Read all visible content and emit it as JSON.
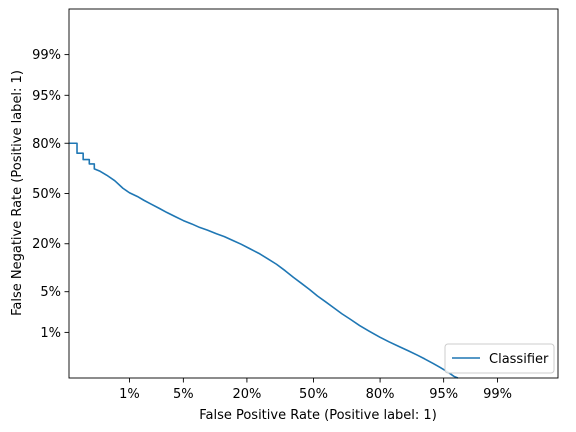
{
  "chart_data": {
    "type": "line",
    "title": "",
    "xlabel": "False Positive Rate (Positive label: 1)",
    "ylabel": "False Negative Rate (Positive label: 1)",
    "x_scale": "probit",
    "y_scale": "probit",
    "xlim": [
      0.001,
      0.999
    ],
    "ylim": [
      0.001,
      0.999
    ],
    "x_ticks": [
      {
        "value": 0.01,
        "label": "1%"
      },
      {
        "value": 0.05,
        "label": "5%"
      },
      {
        "value": 0.2,
        "label": "20%"
      },
      {
        "value": 0.5,
        "label": "50%"
      },
      {
        "value": 0.8,
        "label": "80%"
      },
      {
        "value": 0.95,
        "label": "95%"
      },
      {
        "value": 0.99,
        "label": "99%"
      }
    ],
    "y_ticks": [
      {
        "value": 0.01,
        "label": "1%"
      },
      {
        "value": 0.05,
        "label": "5%"
      },
      {
        "value": 0.2,
        "label": "20%"
      },
      {
        "value": 0.5,
        "label": "50%"
      },
      {
        "value": 0.8,
        "label": "80%"
      },
      {
        "value": 0.95,
        "label": "95%"
      },
      {
        "value": 0.99,
        "label": "99%"
      }
    ],
    "grid": false,
    "legend_position": "lower-right",
    "series": [
      {
        "name": "Classifier",
        "color": "#1f77b4",
        "x": [
          0.001,
          0.0014,
          0.0014,
          0.0018,
          0.0018,
          0.0023,
          0.0023,
          0.0028,
          0.0028,
          0.0035,
          0.0045,
          0.006,
          0.008,
          0.01,
          0.013,
          0.016,
          0.02,
          0.026,
          0.032,
          0.04,
          0.05,
          0.062,
          0.075,
          0.09,
          0.11,
          0.13,
          0.155,
          0.18,
          0.21,
          0.245,
          0.28,
          0.32,
          0.36,
          0.4,
          0.44,
          0.48,
          0.52,
          0.56,
          0.6,
          0.64,
          0.68,
          0.72,
          0.76,
          0.8,
          0.83,
          0.86,
          0.885,
          0.905,
          0.92,
          0.935,
          0.945,
          0.955,
          0.962,
          0.966
        ],
        "y": [
          0.8,
          0.8,
          0.75,
          0.75,
          0.715,
          0.715,
          0.69,
          0.69,
          0.66,
          0.645,
          0.62,
          0.585,
          0.535,
          0.505,
          0.48,
          0.455,
          0.43,
          0.4,
          0.375,
          0.35,
          0.325,
          0.305,
          0.285,
          0.27,
          0.25,
          0.235,
          0.215,
          0.198,
          0.178,
          0.158,
          0.138,
          0.118,
          0.098,
          0.08,
          0.066,
          0.054,
          0.043,
          0.035,
          0.028,
          0.022,
          0.0175,
          0.0135,
          0.0105,
          0.008,
          0.0065,
          0.0052,
          0.0042,
          0.0034,
          0.0028,
          0.0022,
          0.0018,
          0.0014,
          0.0011,
          0.001
        ]
      }
    ]
  }
}
